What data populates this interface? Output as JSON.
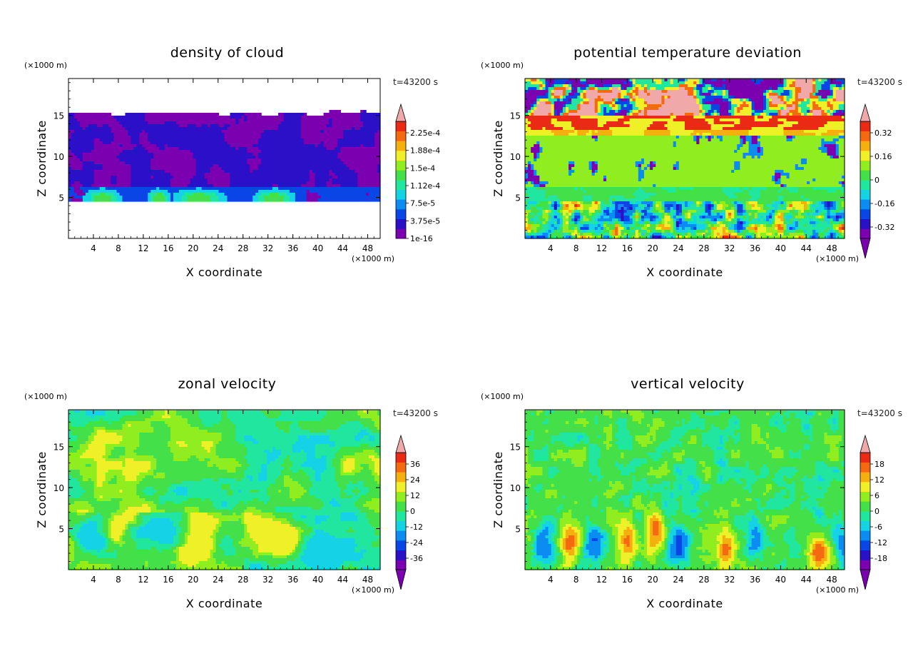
{
  "chart_data": [
    {
      "type": "heatmap",
      "title": "density of cloud",
      "xlabel": "X coordinate",
      "ylabel": "Z coordinate",
      "x_unit": "(×1000 m)",
      "y_unit": "(×1000 m)",
      "time_label": "t=43200 s",
      "xlim": [
        0,
        50
      ],
      "ylim": [
        0,
        19.5
      ],
      "x_ticks": [
        4,
        8,
        12,
        16,
        20,
        24,
        28,
        32,
        36,
        40,
        44,
        48
      ],
      "y_ticks": [
        5,
        10,
        15
      ],
      "colorbar": {
        "labels": [
          "2.25e-4",
          "1.88e-4",
          "1.5e-4",
          "1.12e-4",
          "7.5e-5",
          "3.75e-5",
          "1e-16"
        ],
        "range": [
          0,
          0.00025
        ],
        "extend_max": true,
        "extend_min": false
      },
      "field": "cloud"
    },
    {
      "type": "heatmap",
      "title": "potential temperature deviation",
      "xlabel": "X coordinate",
      "ylabel": "Z coordinate",
      "x_unit": "(×1000 m)",
      "y_unit": "(×1000 m)",
      "time_label": "t=43200 s",
      "xlim": [
        0,
        50
      ],
      "ylim": [
        0,
        19.5
      ],
      "x_ticks": [
        4,
        8,
        12,
        16,
        20,
        24,
        28,
        32,
        36,
        40,
        44,
        48
      ],
      "y_ticks": [
        5,
        10,
        15
      ],
      "colorbar": {
        "labels": [
          "0.32",
          "0.16",
          "0",
          "-0.16",
          "-0.32"
        ],
        "range": [
          -0.4,
          0.4
        ],
        "extend_max": true,
        "extend_min": true
      },
      "field": "theta"
    },
    {
      "type": "heatmap",
      "title": "zonal velocity",
      "xlabel": "X coordinate",
      "ylabel": "Z coordinate",
      "x_unit": "(×1000 m)",
      "y_unit": "(×1000 m)",
      "time_label": "t=43200 s",
      "xlim": [
        0,
        50
      ],
      "ylim": [
        0,
        19.5
      ],
      "x_ticks": [
        4,
        8,
        12,
        16,
        20,
        24,
        28,
        32,
        36,
        40,
        44,
        48
      ],
      "y_ticks": [
        5,
        10,
        15
      ],
      "colorbar": {
        "labels": [
          "36",
          "24",
          "12",
          "0",
          "-12",
          "-24",
          "-36"
        ],
        "range": [
          -42,
          42
        ],
        "extend_max": true,
        "extend_min": true
      },
      "field": "uvel"
    },
    {
      "type": "heatmap",
      "title": "vertical velocity",
      "xlabel": "X coordinate",
      "ylabel": "Z coordinate",
      "x_unit": "(×1000 m)",
      "y_unit": "(×1000 m)",
      "time_label": "t=43200 s",
      "xlim": [
        0,
        50
      ],
      "ylim": [
        0,
        19.5
      ],
      "x_ticks": [
        4,
        8,
        12,
        16,
        20,
        24,
        28,
        32,
        36,
        40,
        44,
        48
      ],
      "y_ticks": [
        5,
        10,
        15
      ],
      "colorbar": {
        "labels": [
          "18",
          "12",
          "6",
          "0",
          "-6",
          "-12",
          "-18"
        ],
        "range": [
          -21,
          21
        ],
        "extend_max": true,
        "extend_min": true
      },
      "field": "wvel"
    }
  ]
}
